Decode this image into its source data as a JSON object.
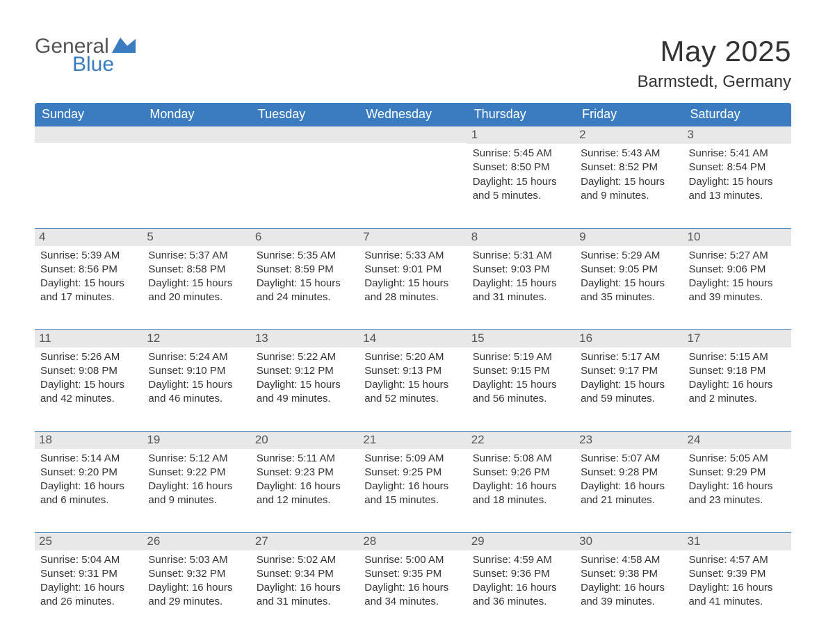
{
  "brand": {
    "word1": "General",
    "word2": "Blue",
    "word1_color": "#555555",
    "word2_color": "#3a7cbf",
    "mark_color": "#3a7cbf"
  },
  "title": {
    "month": "May 2025",
    "location": "Barmstedt, Germany",
    "month_fontsize": 42,
    "location_fontsize": 24,
    "text_color": "#333333"
  },
  "colors": {
    "header_bg": "#3a7cbf",
    "header_text": "#ffffff",
    "daynum_bg": "#e8e8e8",
    "daynum_text": "#555555",
    "row_divider": "#3a7cbf",
    "body_text": "#333333",
    "page_bg": "#ffffff"
  },
  "fonts": {
    "dow_size": 18,
    "daynum_size": 17,
    "detail_size": 15
  },
  "daysOfWeek": [
    "Sunday",
    "Monday",
    "Tuesday",
    "Wednesday",
    "Thursday",
    "Friday",
    "Saturday"
  ],
  "layout": {
    "columns": 7,
    "rows": 5,
    "first_day_column_index": 4
  },
  "days": [
    {
      "n": "1",
      "sunrise": "5:45 AM",
      "sunset": "8:50 PM",
      "daylight": "15 hours and 5 minutes."
    },
    {
      "n": "2",
      "sunrise": "5:43 AM",
      "sunset": "8:52 PM",
      "daylight": "15 hours and 9 minutes."
    },
    {
      "n": "3",
      "sunrise": "5:41 AM",
      "sunset": "8:54 PM",
      "daylight": "15 hours and 13 minutes."
    },
    {
      "n": "4",
      "sunrise": "5:39 AM",
      "sunset": "8:56 PM",
      "daylight": "15 hours and 17 minutes."
    },
    {
      "n": "5",
      "sunrise": "5:37 AM",
      "sunset": "8:58 PM",
      "daylight": "15 hours and 20 minutes."
    },
    {
      "n": "6",
      "sunrise": "5:35 AM",
      "sunset": "8:59 PM",
      "daylight": "15 hours and 24 minutes."
    },
    {
      "n": "7",
      "sunrise": "5:33 AM",
      "sunset": "9:01 PM",
      "daylight": "15 hours and 28 minutes."
    },
    {
      "n": "8",
      "sunrise": "5:31 AM",
      "sunset": "9:03 PM",
      "daylight": "15 hours and 31 minutes."
    },
    {
      "n": "9",
      "sunrise": "5:29 AM",
      "sunset": "9:05 PM",
      "daylight": "15 hours and 35 minutes."
    },
    {
      "n": "10",
      "sunrise": "5:27 AM",
      "sunset": "9:06 PM",
      "daylight": "15 hours and 39 minutes."
    },
    {
      "n": "11",
      "sunrise": "5:26 AM",
      "sunset": "9:08 PM",
      "daylight": "15 hours and 42 minutes."
    },
    {
      "n": "12",
      "sunrise": "5:24 AM",
      "sunset": "9:10 PM",
      "daylight": "15 hours and 46 minutes."
    },
    {
      "n": "13",
      "sunrise": "5:22 AM",
      "sunset": "9:12 PM",
      "daylight": "15 hours and 49 minutes."
    },
    {
      "n": "14",
      "sunrise": "5:20 AM",
      "sunset": "9:13 PM",
      "daylight": "15 hours and 52 minutes."
    },
    {
      "n": "15",
      "sunrise": "5:19 AM",
      "sunset": "9:15 PM",
      "daylight": "15 hours and 56 minutes."
    },
    {
      "n": "16",
      "sunrise": "5:17 AM",
      "sunset": "9:17 PM",
      "daylight": "15 hours and 59 minutes."
    },
    {
      "n": "17",
      "sunrise": "5:15 AM",
      "sunset": "9:18 PM",
      "daylight": "16 hours and 2 minutes."
    },
    {
      "n": "18",
      "sunrise": "5:14 AM",
      "sunset": "9:20 PM",
      "daylight": "16 hours and 6 minutes."
    },
    {
      "n": "19",
      "sunrise": "5:12 AM",
      "sunset": "9:22 PM",
      "daylight": "16 hours and 9 minutes."
    },
    {
      "n": "20",
      "sunrise": "5:11 AM",
      "sunset": "9:23 PM",
      "daylight": "16 hours and 12 minutes."
    },
    {
      "n": "21",
      "sunrise": "5:09 AM",
      "sunset": "9:25 PM",
      "daylight": "16 hours and 15 minutes."
    },
    {
      "n": "22",
      "sunrise": "5:08 AM",
      "sunset": "9:26 PM",
      "daylight": "16 hours and 18 minutes."
    },
    {
      "n": "23",
      "sunrise": "5:07 AM",
      "sunset": "9:28 PM",
      "daylight": "16 hours and 21 minutes."
    },
    {
      "n": "24",
      "sunrise": "5:05 AM",
      "sunset": "9:29 PM",
      "daylight": "16 hours and 23 minutes."
    },
    {
      "n": "25",
      "sunrise": "5:04 AM",
      "sunset": "9:31 PM",
      "daylight": "16 hours and 26 minutes."
    },
    {
      "n": "26",
      "sunrise": "5:03 AM",
      "sunset": "9:32 PM",
      "daylight": "16 hours and 29 minutes."
    },
    {
      "n": "27",
      "sunrise": "5:02 AM",
      "sunset": "9:34 PM",
      "daylight": "16 hours and 31 minutes."
    },
    {
      "n": "28",
      "sunrise": "5:00 AM",
      "sunset": "9:35 PM",
      "daylight": "16 hours and 34 minutes."
    },
    {
      "n": "29",
      "sunrise": "4:59 AM",
      "sunset": "9:36 PM",
      "daylight": "16 hours and 36 minutes."
    },
    {
      "n": "30",
      "sunrise": "4:58 AM",
      "sunset": "9:38 PM",
      "daylight": "16 hours and 39 minutes."
    },
    {
      "n": "31",
      "sunrise": "4:57 AM",
      "sunset": "9:39 PM",
      "daylight": "16 hours and 41 minutes."
    }
  ],
  "labels": {
    "sunrise": "Sunrise:",
    "sunset": "Sunset:",
    "daylight": "Daylight:"
  }
}
